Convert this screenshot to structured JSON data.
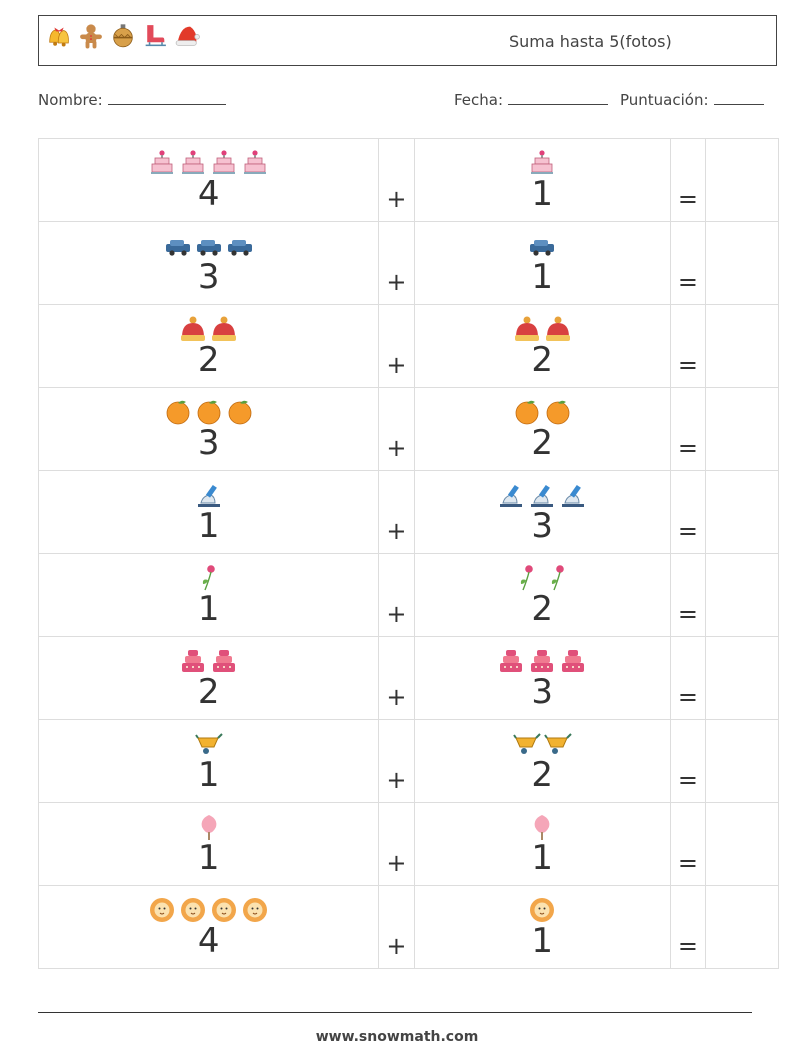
{
  "header": {
    "title": "Suma hasta 5(fotos)",
    "icons": [
      "bells-icon",
      "gingerbread-icon",
      "ornament-icon",
      "ice-skate-icon",
      "santa-hat-icon"
    ]
  },
  "fields": {
    "name_label": "Nombre:",
    "date_label": "Fecha:",
    "score_label": "Puntuación:"
  },
  "rows": [
    {
      "a": 4,
      "a_icon": "cake-icon",
      "b": 1,
      "b_icon": "cake-icon",
      "plus": "+",
      "eq": "="
    },
    {
      "a": 3,
      "a_icon": "car-icon",
      "b": 1,
      "b_icon": "car-icon",
      "plus": "+",
      "eq": "="
    },
    {
      "a": 2,
      "a_icon": "winter-hat-icon",
      "b": 2,
      "b_icon": "winter-hat-icon",
      "plus": "+",
      "eq": "="
    },
    {
      "a": 3,
      "a_icon": "orange-icon",
      "b": 2,
      "b_icon": "orange-icon",
      "plus": "+",
      "eq": "="
    },
    {
      "a": 1,
      "a_icon": "microscope-icon",
      "b": 3,
      "b_icon": "microscope-icon",
      "plus": "+",
      "eq": "="
    },
    {
      "a": 1,
      "a_icon": "rose-icon",
      "b": 2,
      "b_icon": "rose-icon",
      "plus": "+",
      "eq": "="
    },
    {
      "a": 2,
      "a_icon": "layer-cake-icon",
      "b": 3,
      "b_icon": "layer-cake-icon",
      "plus": "+",
      "eq": "="
    },
    {
      "a": 1,
      "a_icon": "wheelbarrow-icon",
      "b": 2,
      "b_icon": "wheelbarrow-icon",
      "plus": "+",
      "eq": "="
    },
    {
      "a": 1,
      "a_icon": "cotton-candy-icon",
      "b": 1,
      "b_icon": "cotton-candy-icon",
      "plus": "+",
      "eq": "="
    },
    {
      "a": 4,
      "a_icon": "lion-icon",
      "b": 1,
      "b_icon": "lion-icon",
      "plus": "+",
      "eq": "="
    }
  ],
  "footer": {
    "url": "www.snowmath.com"
  }
}
